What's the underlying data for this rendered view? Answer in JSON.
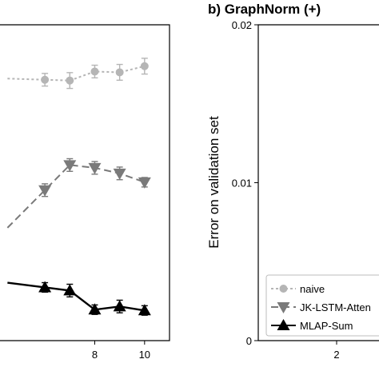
{
  "chart_data": [
    {
      "panel": "left",
      "type": "line",
      "title": "",
      "xlabel": "",
      "ylabel": "",
      "x_ticks": [
        "8",
        "10"
      ],
      "xlim": [
        4.2,
        11.0
      ],
      "ylim": [
        0,
        0.02
      ],
      "grid": false,
      "series": [
        {
          "name": "naive",
          "color": "#b5b5b5",
          "marker": "circle",
          "dash": "3,3",
          "x": [
            6,
            7,
            8,
            9,
            10
          ],
          "y": [
            0.01652,
            0.01647,
            0.01704,
            0.01699,
            0.01738
          ],
          "err": [
            0.0004,
            0.0005,
            0.0004,
            0.0005,
            0.0005
          ]
        },
        {
          "name": "JK-LSTM-Attention",
          "color": "#7a7a7a",
          "marker": "triangle-down",
          "dash": "9,5",
          "x": [
            6,
            7,
            8,
            9,
            10
          ],
          "y": [
            0.00953,
            0.01112,
            0.01094,
            0.01059,
            0.01003
          ],
          "err": [
            0.0004,
            0.0004,
            0.0004,
            0.0004,
            0.0003
          ]
        },
        {
          "name": "MLAP-Sum",
          "color": "#000000",
          "marker": "triangle-up",
          "dash": "",
          "x": [
            6,
            7,
            8,
            9,
            10
          ],
          "y": [
            0.00337,
            0.00317,
            0.00196,
            0.00216,
            0.00191
          ],
          "err": [
            0.0003,
            0.0004,
            0.0003,
            0.0004,
            0.0003
          ]
        }
      ]
    },
    {
      "panel": "right",
      "type": "line",
      "title": "b) GraphNorm (+)",
      "xlabel": "",
      "ylabel": "Error on validation set",
      "x_ticks": [
        "2"
      ],
      "y_ticks": [
        "0",
        "0.01",
        "0.02"
      ],
      "ylim": [
        0,
        0.02
      ],
      "grid": false,
      "legend": {
        "position": "bottom-left",
        "entries": [
          "naive",
          "JK-LSTM-Atten",
          "MLAP-Sum"
        ]
      }
    }
  ]
}
